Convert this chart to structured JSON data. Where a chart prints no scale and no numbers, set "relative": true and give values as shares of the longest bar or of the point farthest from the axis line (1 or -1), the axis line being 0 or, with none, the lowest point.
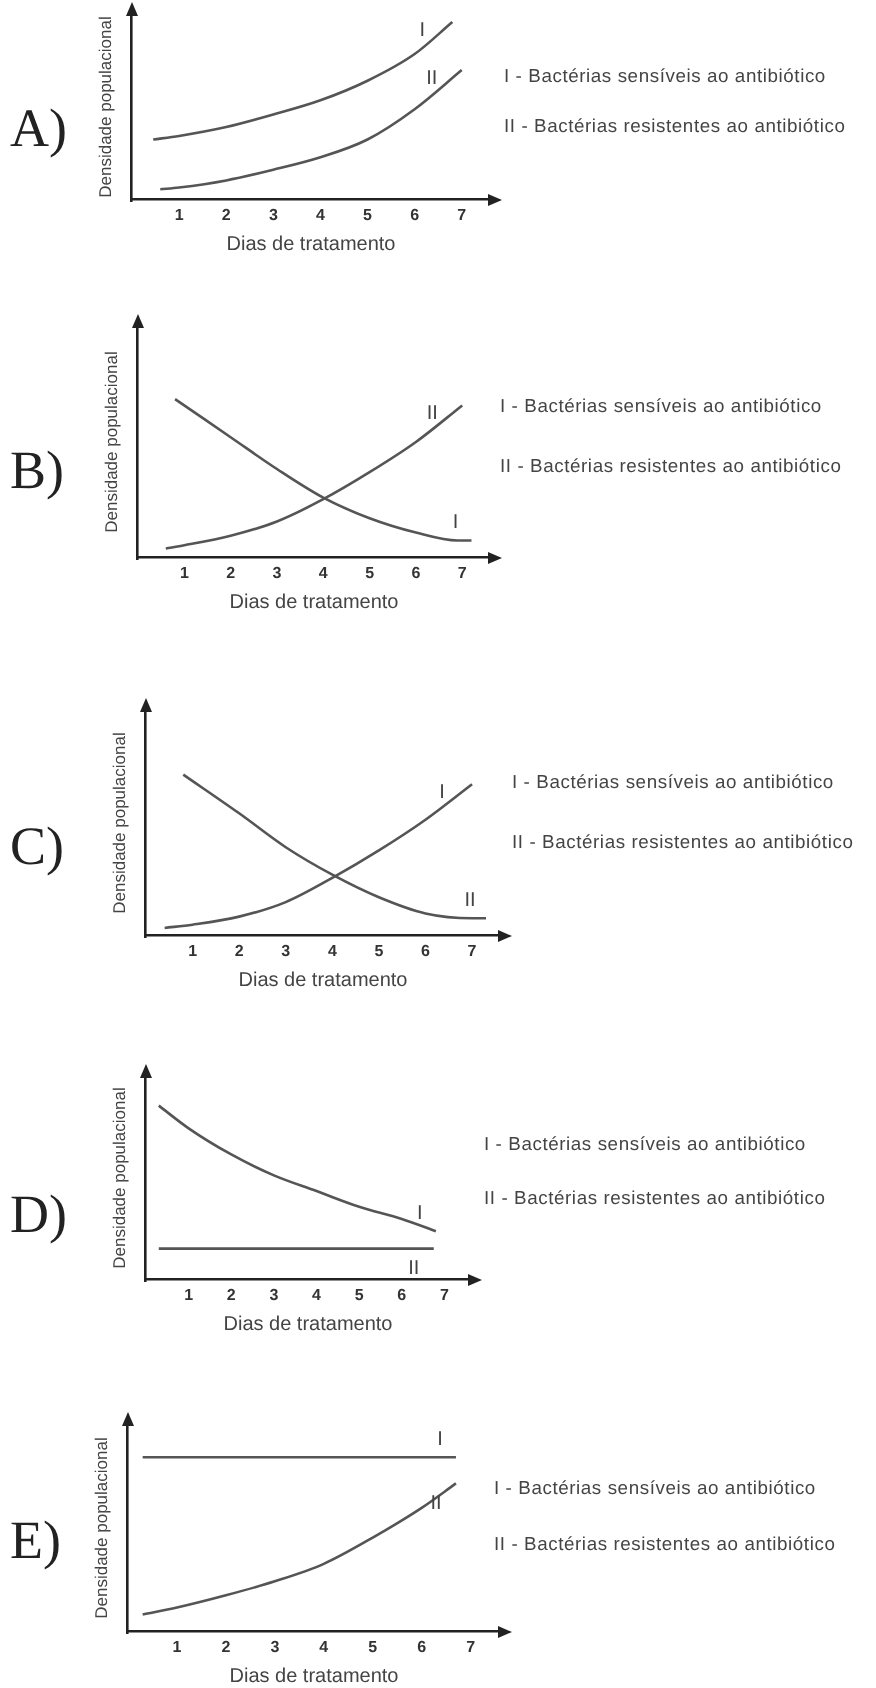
{
  "chart_data": [
    {
      "type": "line",
      "title": "A)",
      "xlabel": "Dias de tratamento",
      "ylabel": "Densidade populacional",
      "relative": true,
      "xlim": [
        0,
        7.6
      ],
      "xticks": [
        1,
        2,
        3,
        4,
        5,
        6,
        7
      ],
      "annotations": [
        "I - Bactérias sensíveis ao antibiótico",
        "II - Bactérias resistentes ao antibiótico"
      ],
      "series": [
        {
          "name": "I",
          "color": "#555555",
          "x": [
            0.45,
            1,
            2,
            3,
            4,
            5,
            6,
            6.8
          ],
          "values": [
            0.34,
            0.36,
            0.41,
            0.48,
            0.56,
            0.67,
            0.82,
            1
          ]
        },
        {
          "name": "II",
          "color": "#555555",
          "x": [
            0.6,
            1,
            2,
            3,
            4,
            5,
            6,
            7
          ],
          "values": [
            0.06,
            0.07,
            0.11,
            0.17,
            0.24,
            0.34,
            0.51,
            0.73
          ]
        }
      ]
    },
    {
      "type": "line",
      "title": "B)",
      "xlabel": "Dias de tratamento",
      "ylabel": "Densidade populacional",
      "relative": true,
      "xlim": [
        0,
        7.6
      ],
      "xticks": [
        1,
        2,
        3,
        4,
        5,
        6,
        7
      ],
      "annotations": [
        "I - Bactérias sensíveis ao antibiótico",
        "II - Bactérias resistentes ao antibiótico"
      ],
      "series": [
        {
          "name": "I",
          "color": "#555555",
          "x": [
            0.8,
            2,
            3,
            4,
            5,
            6,
            6.9,
            7.2
          ],
          "values": [
            1,
            0.76,
            0.56,
            0.38,
            0.25,
            0.16,
            0.11,
            0.11
          ]
        },
        {
          "name": "II",
          "color": "#555555",
          "x": [
            0.6,
            1,
            2,
            3,
            4,
            5,
            6,
            7
          ],
          "values": [
            0.06,
            0.08,
            0.14,
            0.23,
            0.37,
            0.54,
            0.73,
            0.96
          ]
        }
      ]
    },
    {
      "type": "line",
      "title": "C)",
      "xlabel": "Dias de tratamento",
      "ylabel": "Densidade populacional",
      "relative": true,
      "xlim": [
        0,
        7.6
      ],
      "xticks": [
        1,
        2,
        3,
        4,
        5,
        6,
        7
      ],
      "annotations": [
        "I - Bactérias sensíveis ao antibiótico",
        "II - Bactérias resistentes ao antibiótico"
      ],
      "series": [
        {
          "name": "I",
          "color": "#555555",
          "x": [
            0.4,
            1,
            2,
            3,
            4,
            5,
            6,
            7
          ],
          "values": [
            0.05,
            0.07,
            0.12,
            0.21,
            0.36,
            0.53,
            0.72,
            0.94
          ]
        },
        {
          "name": "II",
          "color": "#555555",
          "x": [
            0.8,
            2,
            3,
            4,
            5,
            6,
            7,
            7.3
          ],
          "values": [
            1,
            0.76,
            0.55,
            0.38,
            0.24,
            0.14,
            0.11,
            0.11
          ]
        }
      ]
    },
    {
      "type": "line",
      "title": "D)",
      "xlabel": "Dias de tratamento",
      "ylabel": "Densidade populacional",
      "relative": true,
      "xlim": [
        0,
        7.6
      ],
      "xticks": [
        1,
        2,
        3,
        4,
        5,
        6,
        7
      ],
      "annotations": [
        "I - Bactérias sensíveis ao antibiótico",
        "II - Bactérias resistentes ao antibiótico"
      ],
      "series": [
        {
          "name": "I",
          "color": "#555555",
          "x": [
            0.3,
            1,
            2,
            3,
            4,
            5,
            6,
            6.8
          ],
          "values": [
            1,
            0.87,
            0.72,
            0.6,
            0.51,
            0.42,
            0.35,
            0.28
          ]
        },
        {
          "name": "II",
          "color": "#555555",
          "x": [
            0.3,
            6.75
          ],
          "values": [
            0.18,
            0.18
          ]
        }
      ]
    },
    {
      "type": "line",
      "title": "E)",
      "xlabel": "Dias de tratamento",
      "ylabel": "Densidade populacional",
      "relative": true,
      "xlim": [
        0,
        7.6
      ],
      "xticks": [
        1,
        2,
        3,
        4,
        5,
        6,
        7
      ],
      "annotations": [
        "I - Bactérias sensíveis ao antibiótico",
        "II - Bactérias resistentes ao antibiótico"
      ],
      "series": [
        {
          "name": "I",
          "color": "#555555",
          "x": [
            0.3,
            6.7
          ],
          "values": [
            1,
            1
          ]
        },
        {
          "name": "II",
          "color": "#555555",
          "x": [
            0.3,
            1,
            2,
            3,
            4,
            5,
            6,
            6.7
          ],
          "values": [
            0.1,
            0.14,
            0.21,
            0.29,
            0.39,
            0.54,
            0.71,
            0.85
          ]
        }
      ]
    }
  ]
}
